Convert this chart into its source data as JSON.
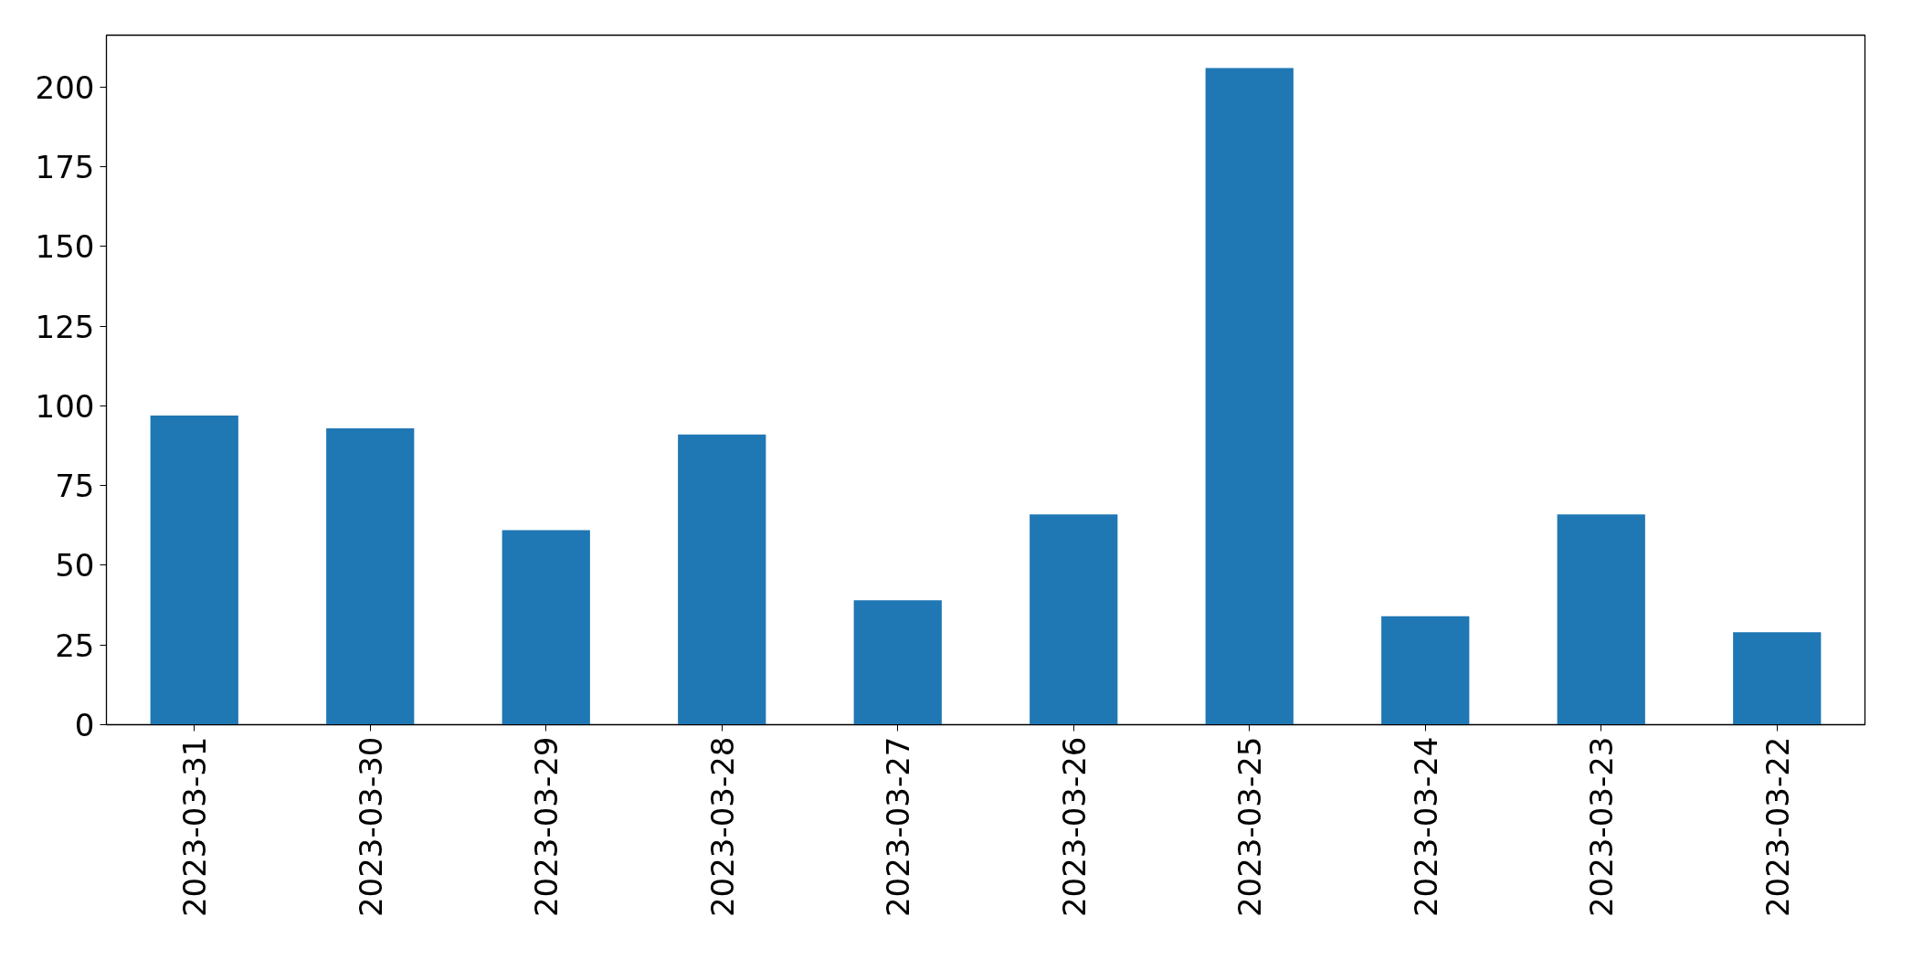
{
  "chart_data": {
    "type": "bar",
    "categories": [
      "2023-03-31",
      "2023-03-30",
      "2023-03-29",
      "2023-03-28",
      "2023-03-27",
      "2023-03-26",
      "2023-03-25",
      "2023-03-24",
      "2023-03-23",
      "2023-03-22"
    ],
    "values": [
      97,
      93,
      61,
      91,
      39,
      66,
      206,
      34,
      66,
      29
    ],
    "color": "#1f77b4",
    "ylim": [
      0,
      216.3
    ],
    "yticks": [
      0,
      25,
      50,
      75,
      100,
      125,
      150,
      175,
      200
    ]
  }
}
